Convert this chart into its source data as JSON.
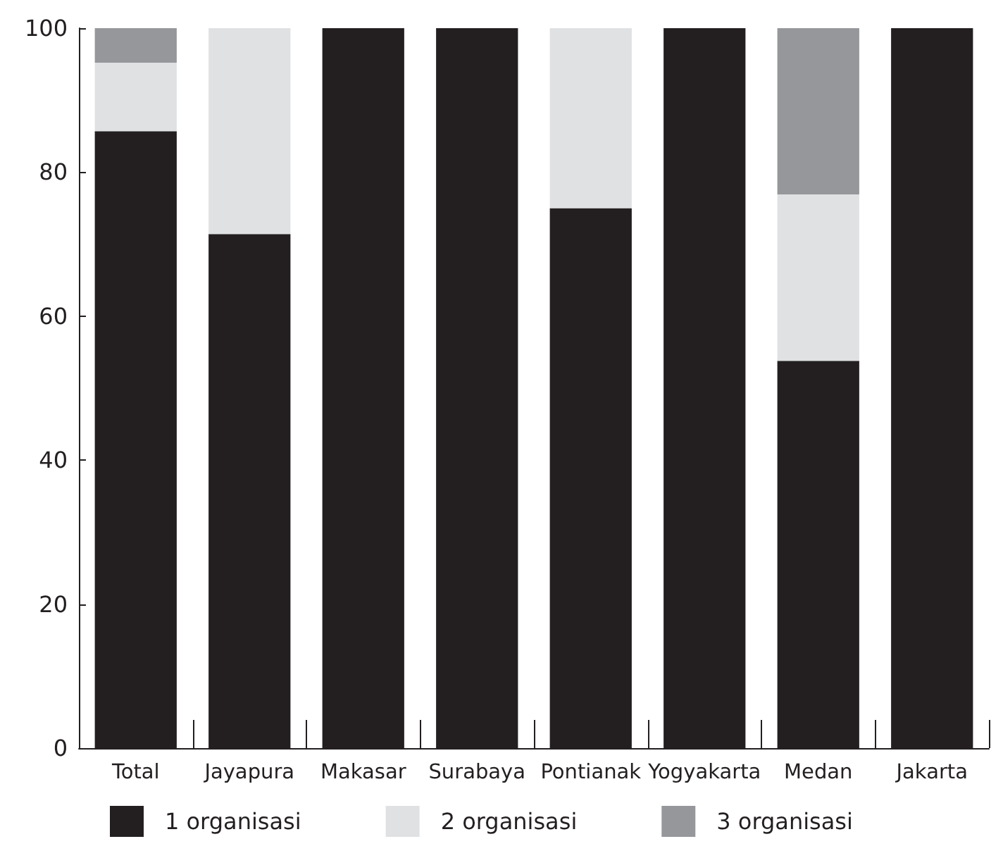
{
  "chart_data": {
    "type": "bar",
    "stacked": true,
    "categories": [
      "Total",
      "Jayapura",
      "Makasar",
      "Surabaya",
      "Pontianak",
      "Yogyakarta",
      "Medan",
      "Jakarta"
    ],
    "series": [
      {
        "name": "1 organisasi",
        "color": "#231f20",
        "values": [
          85.7,
          71.4,
          100,
          100,
          75,
          100,
          53.8,
          100
        ]
      },
      {
        "name": "2 organisasi",
        "color": "#e0e1e3",
        "values": [
          9.5,
          28.6,
          0,
          0,
          25,
          0,
          23.1,
          0
        ]
      },
      {
        "name": "3 organisasi",
        "color": "#96979a",
        "values": [
          4.8,
          0,
          0,
          0,
          0,
          0,
          23.1,
          0
        ]
      }
    ],
    "ylim": [
      0,
      100
    ],
    "yticks": [
      0,
      20,
      40,
      60,
      80,
      100
    ],
    "grid": false,
    "legend": "bottom"
  }
}
